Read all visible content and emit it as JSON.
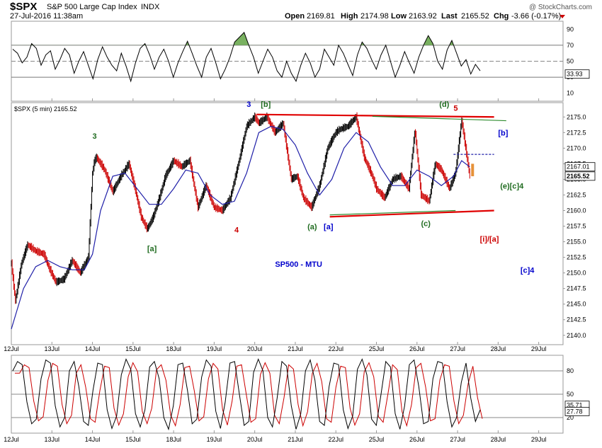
{
  "header": {
    "symbol": "$SPX",
    "name": "S&P 500 Large Cap Index",
    "exchange": "INDX",
    "datetime": "27-Jul-2016 11:38am",
    "open_label": "Open",
    "open": "2169.81",
    "high_label": "High",
    "high": "2174.98",
    "low_label": "Low",
    "low": "2163.92",
    "last_label": "Last",
    "last": "2165.52",
    "chg_label": "Chg",
    "chg": "-3.66 (-0.17%)",
    "credit": "@ StockCharts.com"
  },
  "chart_data": [
    {
      "type": "line",
      "panel": "upper-oscillator",
      "ylim": [
        0,
        100
      ],
      "yticks": [
        "90",
        "70",
        "50",
        "30",
        "10"
      ],
      "levels": [
        70,
        30
      ],
      "midline": 50,
      "last_value": "33.93",
      "colors": {
        "line": "#000000",
        "fill": "#6aa84f"
      },
      "series": [
        {
          "values": [
            65,
            60,
            48,
            55,
            72,
            66,
            45,
            58,
            63,
            40,
            52,
            66,
            58,
            35,
            50,
            62,
            45,
            28,
            52,
            68,
            55,
            45,
            38,
            60,
            44,
            25,
            48,
            66,
            72,
            58,
            40,
            55,
            65,
            50,
            30,
            48,
            62,
            75,
            60,
            44,
            30,
            55,
            66,
            48,
            28,
            40,
            55,
            74,
            80,
            86,
            70,
            55,
            35,
            50,
            65,
            55,
            38,
            30,
            50,
            35,
            25,
            45,
            60,
            48,
            30,
            40,
            65,
            55,
            45,
            70,
            60,
            46,
            32,
            58,
            74,
            66,
            52,
            40,
            58,
            70,
            50,
            30,
            45,
            62,
            48,
            35,
            55,
            70,
            82,
            72,
            50,
            40,
            64,
            76,
            60,
            44,
            52,
            34,
            46,
            38
          ]
        }
      ]
    },
    {
      "type": "line",
      "panel": "main-price",
      "title": "$SPX (5 min) 2165.52",
      "ylim": [
        2138.5,
        2177.3
      ],
      "yticks": [
        "2175.0",
        "2172.5",
        "2170.0",
        "2167.5",
        "2165.0",
        "2162.5",
        "2160.0",
        "2157.5",
        "2155.0",
        "2152.5",
        "2150.0",
        "2147.5",
        "2145.0",
        "2142.5",
        "2140.0"
      ],
      "x_labels": [
        "12Jul",
        "13Jul",
        "14Jul",
        "15Jul",
        "18Jul",
        "19Jul",
        "20Jul",
        "21Jul",
        "22Jul",
        "25Jul",
        "26Jul",
        "27Jul",
        "28Jul",
        "29Jul"
      ],
      "x_span": 13.6,
      "last_value": "2165.52",
      "ma_value": "2167.01",
      "colors": {
        "price": "#000000",
        "down": "#cc0000",
        "ma": "#1f1fa8"
      },
      "series": [
        {
          "x": [
            0,
            0.1,
            0.25,
            0.4,
            0.6,
            0.8,
            0.95,
            1.1,
            1.3,
            1.5,
            1.7,
            1.9,
            2.0,
            2.05,
            2.1,
            2.3,
            2.5,
            2.7,
            2.9,
            3.05,
            3.2,
            3.35,
            3.5,
            3.65,
            3.8,
            4.0,
            4.2,
            4.4,
            4.6,
            4.8,
            5.0,
            5.2,
            5.4,
            5.6,
            5.8,
            6.0,
            6.1,
            6.2,
            6.3,
            6.5,
            6.7,
            6.9,
            7.05,
            7.2,
            7.4,
            7.6,
            7.8,
            8.0,
            8.1,
            8.3,
            8.5,
            8.7,
            8.9,
            9.0,
            9.2,
            9.4,
            9.6,
            9.8,
            9.95,
            10.1,
            10.3,
            10.45,
            10.6,
            10.8,
            10.95,
            11.1,
            11.2,
            11.3
          ],
          "values": [
            2151.5,
            2145.5,
            2151.5,
            2154.5,
            2153.5,
            2153.0,
            2150.5,
            2148.5,
            2149.0,
            2152.0,
            2150.0,
            2152.5,
            2166.0,
            2168.0,
            2168.5,
            2166.5,
            2163.0,
            2165.5,
            2167.5,
            2163.5,
            2159.0,
            2157.0,
            2159.0,
            2162.0,
            2165.5,
            2168.0,
            2167.0,
            2168.0,
            2160.5,
            2164.0,
            2160.5,
            2160.0,
            2162.0,
            2167.5,
            2173.5,
            2175.0,
            2174.0,
            2174.5,
            2175.0,
            2172.5,
            2174.0,
            2165.0,
            2165.5,
            2162.0,
            2160.5,
            2164.0,
            2170.0,
            2172.5,
            2173.0,
            2173.5,
            2175.0,
            2168.5,
            2165.5,
            2163.5,
            2162.0,
            2165.0,
            2165.5,
            2163.5,
            2173.0,
            2162.5,
            2161.5,
            2167.5,
            2166.5,
            2163.5,
            2166.0,
            2174.5,
            2170.0,
            2165.5
          ]
        },
        {
          "x": [
            0,
            0.3,
            0.6,
            0.9,
            1.2,
            1.5,
            1.8,
            2.0,
            2.2,
            2.5,
            2.8,
            3.1,
            3.4,
            3.7,
            4.0,
            4.3,
            4.6,
            4.9,
            5.2,
            5.5,
            5.8,
            6.1,
            6.4,
            6.7,
            7.0,
            7.3,
            7.6,
            7.9,
            8.2,
            8.5,
            8.8,
            9.1,
            9.4,
            9.7,
            10.0,
            10.3,
            10.6,
            10.9,
            11.1,
            11.3
          ],
          "values": [
            2141.0,
            2147.5,
            2151.0,
            2152.0,
            2151.0,
            2150.5,
            2150.5,
            2153.0,
            2160.0,
            2165.5,
            2166.0,
            2163.5,
            2161.0,
            2161.0,
            2163.5,
            2166.5,
            2166.0,
            2162.5,
            2161.0,
            2161.5,
            2166.0,
            2172.5,
            2173.5,
            2173.0,
            2170.5,
            2166.0,
            2162.5,
            2165.0,
            2170.0,
            2172.5,
            2171.0,
            2167.0,
            2164.0,
            2164.0,
            2166.5,
            2165.5,
            2164.0,
            2165.5,
            2168.0,
            2167.0
          ]
        }
      ],
      "trendlines": [
        {
          "name": "upper-red",
          "color": "#e00000",
          "x": [
            6.05,
            11.9
          ],
          "y": [
            2175.4,
            2175.0
          ]
        },
        {
          "name": "lower-red",
          "color": "#e00000",
          "x": [
            7.85,
            11.9
          ],
          "y": [
            2159.0,
            2160.0
          ]
        },
        {
          "name": "upper-green",
          "color": "#2e8b2e",
          "x": [
            8.9,
            12.2
          ],
          "y": [
            2175.1,
            2174.4
          ]
        },
        {
          "name": "lower-green",
          "color": "#2e8b2e",
          "x": [
            7.85,
            10.95
          ],
          "y": [
            2159.3,
            2160.0
          ]
        },
        {
          "name": "projection",
          "color": "#1f1fa8",
          "x": [
            10.9,
            11.9
          ],
          "y": [
            2169.0,
            2169.0
          ],
          "dashed": true
        }
      ],
      "annotations": [
        {
          "text": "3",
          "x": 2.0,
          "y": 2171.5,
          "color": "#1f6b1f"
        },
        {
          "text": "[a]",
          "x": 3.35,
          "y": 2153.5,
          "color": "#1f6b1f"
        },
        {
          "text": "4",
          "x": 5.5,
          "y": 2156.5,
          "color": "#cc0000"
        },
        {
          "text": "3",
          "x": 5.8,
          "y": 2176.6,
          "color": "#0000cc"
        },
        {
          "text": "[b]",
          "x": 6.15,
          "y": 2176.6,
          "color": "#1f6b1f"
        },
        {
          "text": "(a)",
          "x": 7.3,
          "y": 2157.0,
          "color": "#1f6b1f"
        },
        {
          "text": "[a]",
          "x": 7.7,
          "y": 2157.0,
          "color": "#0000cc"
        },
        {
          "text": "SP500 - MTU",
          "x": 6.5,
          "y": 2151.0,
          "color": "#0000cc"
        },
        {
          "text": "(c)",
          "x": 10.1,
          "y": 2157.5,
          "color": "#1f6b1f"
        },
        {
          "text": "(d)",
          "x": 10.55,
          "y": 2176.6,
          "color": "#1f6b1f"
        },
        {
          "text": "5",
          "x": 10.9,
          "y": 2176.0,
          "color": "#cc0000"
        },
        {
          "text": "[b]",
          "x": 12.0,
          "y": 2172.0,
          "color": "#0000cc"
        },
        {
          "text": "(e)[c]4",
          "x": 12.05,
          "y": 2163.5,
          "color": "#1f6b1f"
        },
        {
          "text": "[i]/[a]",
          "x": 11.55,
          "y": 2155.0,
          "color": "#cc0000"
        },
        {
          "text": "[c]4",
          "x": 12.55,
          "y": 2150.0,
          "color": "#0000cc"
        }
      ]
    },
    {
      "type": "line",
      "panel": "lower-oscillator",
      "ylim": [
        0,
        100
      ],
      "yticks": [
        "80",
        "50",
        "20"
      ],
      "levels": [
        80,
        50,
        20
      ],
      "values_shown": [
        "35.71",
        "27.78"
      ],
      "colors": {
        "k": "#000000",
        "d": "#cc0000"
      },
      "series": [
        {
          "values": [
            80,
            92,
            88,
            40,
            12,
            18,
            70,
            94,
            90,
            35,
            8,
            20,
            80,
            92,
            60,
            15,
            10,
            55,
            90,
            88,
            30,
            6,
            22,
            75,
            95,
            82,
            25,
            8,
            30,
            85,
            92,
            70,
            20,
            5,
            35,
            88,
            90,
            55,
            12,
            18,
            72,
            94,
            86,
            28,
            6,
            40,
            90,
            92,
            50,
            10,
            15,
            78,
            95,
            80,
            20,
            8,
            45,
            92,
            86,
            35,
            5,
            25,
            80,
            94,
            68,
            15,
            10,
            60,
            90,
            88,
            30,
            6,
            22,
            82,
            95,
            75,
            18,
            10,
            50,
            92,
            85,
            25,
            5,
            35,
            88,
            94,
            60,
            12,
            15,
            70,
            92,
            90,
            40,
            8,
            20,
            65,
            90,
            45,
            15,
            30
          ]
        }
      ]
    }
  ]
}
